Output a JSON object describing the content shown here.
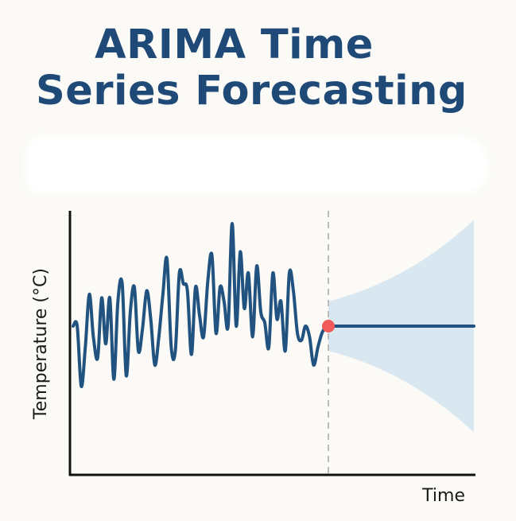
{
  "title_lines": [
    "ARIMA Time",
    "Series Forecasting"
  ],
  "colors": {
    "title": "#1f4a78",
    "series": "#22527f",
    "forecast_band": "#d9e7f1",
    "split_marker": "#f05a5a",
    "split_line": "#bcbcbc",
    "axes": "#111111"
  },
  "chart_data": {
    "type": "line",
    "title": "ARIMA Time Series Forecasting",
    "xlabel": "Time",
    "ylabel": "Temperature (°C)",
    "x_ticks_shown": false,
    "y_ticks_shown": false,
    "grid": false,
    "ylim": [
      -1.8,
      2.1
    ],
    "observed": {
      "x": [
        0,
        0.016,
        0.032,
        0.048,
        0.064,
        0.08,
        0.097,
        0.113,
        0.129,
        0.145,
        0.161,
        0.177,
        0.194,
        0.21,
        0.226,
        0.242,
        0.258,
        0.274,
        0.291,
        0.307,
        0.323,
        0.339,
        0.355,
        0.371,
        0.388,
        0.404,
        0.42,
        0.436,
        0.452,
        0.468,
        0.484,
        0.5,
        0.516,
        0.533,
        0.549,
        0.565,
        0.581,
        0.597,
        0.613,
        0.629,
        0.645,
        0.661,
        0.677,
        0.693,
        0.71,
        0.726,
        0.742,
        0.758,
        0.774,
        0.79,
        0.806,
        0.822,
        0.839,
        0.855,
        0.871,
        0.887,
        0.903,
        0.919,
        0.935,
        0.951,
        0.968,
        0.984,
        1.0
      ],
      "y": [
        0.0,
        0.0,
        -0.85,
        -0.3,
        0.45,
        -0.15,
        -0.45,
        0.4,
        -0.25,
        0.4,
        -0.75,
        0.35,
        0.6,
        -0.7,
        0.2,
        0.55,
        -0.35,
        -0.05,
        0.5,
        0.1,
        -0.55,
        -0.15,
        0.45,
        0.95,
        -0.3,
        -0.35,
        0.75,
        0.6,
        0.5,
        -0.4,
        0.55,
        0.15,
        -0.15,
        0.65,
        1.0,
        -0.1,
        0.55,
        0.35,
        0.0,
        1.45,
        0.0,
        1.05,
        0.25,
        0.75,
        -0.15,
        0.85,
        0.2,
        0.05,
        -0.3,
        0.75,
        0.1,
        0.35,
        -0.35,
        0.75,
        0.5,
        -0.1,
        -0.2,
        0.0,
        -0.15,
        -0.55,
        -0.3,
        -0.1,
        0.0
      ]
    },
    "forecast": {
      "value": 0.0,
      "band_start_halfwidth": 0.35,
      "band_end_halfwidth": 1.5
    }
  }
}
